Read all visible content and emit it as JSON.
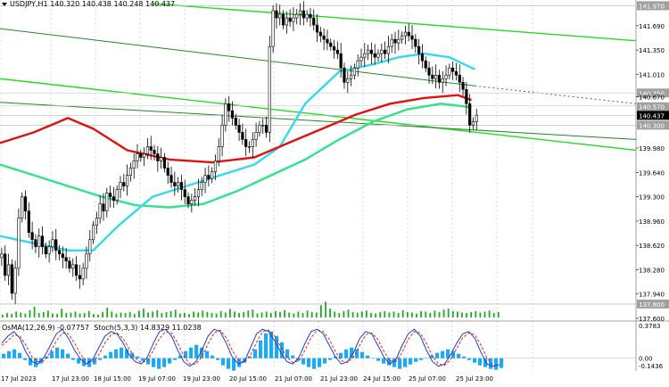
{
  "header": {
    "symbol_label": "USDJPY,H1",
    "ohlc": "140.320 140.438 140.248 140.437"
  },
  "indicator": {
    "osma_label": "OsMA(12,26,9) -0.07757",
    "stoch_label": "Stoch(5,3,3) 14.8329 11.0238"
  },
  "chart_data": {
    "type": "candlestick",
    "instrument": "USDJPY",
    "timeframe": "H1",
    "price_range": [
      137.6,
      142.0
    ],
    "price_ticks": [
      "141.970",
      "141.690",
      "141.350",
      "141.010",
      "140.750",
      "140.670",
      "140.570",
      "140.437",
      "140.300",
      "139.980",
      "139.640",
      "139.300",
      "138.960",
      "138.620",
      "138.280",
      "137.940",
      "137.800",
      "137.600"
    ],
    "time_labels": [
      "17 Jul 2023",
      "17 Jul 23:00",
      "18 Jul 15:00",
      "19 Jul 07:00",
      "19 Jul 23:00",
      "20 Jul 15:00",
      "21 Jul 07:00",
      "21 Jul 23:00",
      "24 Jul 15:00",
      "25 Jul 07:00",
      "25 Jul 23:00"
    ],
    "key_levels": [
      {
        "label": "141.970",
        "price": 141.97,
        "color": "#c0c0c0"
      },
      {
        "label": "140.750",
        "price": 140.75,
        "color": "#d0d0d0"
      },
      {
        "label": "140.570",
        "price": 140.57,
        "color": "#d0d0d0"
      },
      {
        "label": "140.300",
        "price": 140.3,
        "color": "#c0c0c0"
      },
      {
        "label": "137.800",
        "price": 137.8,
        "color": "#c0c0c0"
      }
    ],
    "current_price": {
      "label": "140.437",
      "price": 140.437
    },
    "level_140670": {
      "label": "140.670",
      "price": 140.67
    },
    "close_path": [
      [
        0,
        138.45
      ],
      [
        4,
        138.5
      ],
      [
        8,
        138.2
      ],
      [
        12,
        138.35
      ],
      [
        16,
        137.95
      ],
      [
        20,
        138.3
      ],
      [
        24,
        139.0
      ],
      [
        28,
        139.3
      ],
      [
        32,
        139.1
      ],
      [
        36,
        138.8
      ],
      [
        40,
        138.7
      ],
      [
        44,
        138.6
      ],
      [
        48,
        138.75
      ],
      [
        52,
        138.6
      ],
      [
        56,
        138.5
      ],
      [
        60,
        138.6
      ],
      [
        64,
        138.7
      ],
      [
        68,
        138.55
      ],
      [
        72,
        138.5
      ],
      [
        76,
        138.45
      ],
      [
        80,
        138.4
      ],
      [
        84,
        138.3
      ],
      [
        88,
        138.35
      ],
      [
        92,
        138.2
      ],
      [
        96,
        138.15
      ],
      [
        100,
        138.3
      ],
      [
        104,
        138.5
      ],
      [
        108,
        138.7
      ],
      [
        112,
        138.9
      ],
      [
        116,
        139.0
      ],
      [
        120,
        139.2
      ],
      [
        124,
        139.1
      ],
      [
        128,
        139.35
      ],
      [
        132,
        139.3
      ],
      [
        136,
        139.25
      ],
      [
        140,
        139.4
      ],
      [
        144,
        139.5
      ],
      [
        148,
        139.45
      ],
      [
        152,
        139.6
      ],
      [
        156,
        139.7
      ],
      [
        160,
        139.8
      ],
      [
        164,
        139.9
      ],
      [
        168,
        139.85
      ],
      [
        172,
        139.9
      ],
      [
        176,
        140.0
      ],
      [
        180,
        139.95
      ],
      [
        184,
        139.9
      ],
      [
        188,
        139.8
      ],
      [
        192,
        139.85
      ],
      [
        196,
        139.7
      ],
      [
        200,
        139.6
      ],
      [
        204,
        139.5
      ],
      [
        208,
        139.45
      ],
      [
        212,
        139.5
      ],
      [
        216,
        139.4
      ],
      [
        220,
        139.3
      ],
      [
        224,
        139.2
      ],
      [
        228,
        139.25
      ],
      [
        232,
        139.3
      ],
      [
        236,
        139.4
      ],
      [
        240,
        139.5
      ],
      [
        244,
        139.6
      ],
      [
        248,
        139.55
      ],
      [
        252,
        139.65
      ],
      [
        256,
        139.8
      ],
      [
        260,
        140.0
      ],
      [
        264,
        140.3
      ],
      [
        268,
        140.6
      ],
      [
        272,
        140.5
      ],
      [
        276,
        140.4
      ],
      [
        280,
        140.3
      ],
      [
        284,
        140.2
      ],
      [
        288,
        140.1
      ],
      [
        292,
        140.0
      ],
      [
        296,
        140.0
      ],
      [
        300,
        140.1
      ],
      [
        304,
        140.2
      ],
      [
        308,
        140.3
      ],
      [
        312,
        140.3
      ],
      [
        316,
        140.2
      ],
      [
        320,
        141.4
      ],
      [
        324,
        141.9
      ],
      [
        328,
        141.8
      ],
      [
        332,
        141.85
      ],
      [
        336,
        141.7
      ],
      [
        340,
        141.8
      ],
      [
        344,
        141.75
      ],
      [
        348,
        141.8
      ],
      [
        352,
        141.85
      ],
      [
        356,
        141.9
      ],
      [
        360,
        141.8
      ],
      [
        364,
        141.85
      ],
      [
        368,
        141.8
      ],
      [
        372,
        141.7
      ],
      [
        376,
        141.6
      ],
      [
        380,
        141.55
      ],
      [
        384,
        141.5
      ],
      [
        388,
        141.45
      ],
      [
        392,
        141.4
      ],
      [
        396,
        141.35
      ],
      [
        400,
        141.3
      ],
      [
        404,
        141.1
      ],
      [
        408,
        140.9
      ],
      [
        412,
        140.95
      ],
      [
        416,
        141.0
      ],
      [
        420,
        141.1
      ],
      [
        424,
        141.2
      ],
      [
        428,
        141.25
      ],
      [
        432,
        141.3
      ],
      [
        436,
        141.35
      ],
      [
        440,
        141.3
      ],
      [
        444,
        141.25
      ],
      [
        448,
        141.3
      ],
      [
        452,
        141.35
      ],
      [
        456,
        141.3
      ],
      [
        460,
        141.4
      ],
      [
        464,
        141.5
      ],
      [
        468,
        141.45
      ],
      [
        472,
        141.5
      ],
      [
        476,
        141.55
      ],
      [
        480,
        141.6
      ],
      [
        484,
        141.55
      ],
      [
        488,
        141.5
      ],
      [
        492,
        141.4
      ],
      [
        496,
        141.3
      ],
      [
        500,
        141.2
      ],
      [
        504,
        141.1
      ],
      [
        508,
        141.0
      ],
      [
        512,
        140.95
      ],
      [
        516,
        141.0
      ],
      [
        520,
        140.9
      ],
      [
        524,
        140.95
      ],
      [
        528,
        141.0
      ],
      [
        532,
        141.1
      ],
      [
        536,
        141.05
      ],
      [
        540,
        141.0
      ],
      [
        544,
        140.9
      ],
      [
        548,
        140.8
      ],
      [
        552,
        140.6
      ],
      [
        556,
        140.3
      ],
      [
        560,
        140.35
      ],
      [
        564,
        140.44
      ]
    ],
    "ma_200_red": [
      [
        0,
        140.05
      ],
      [
        40,
        140.2
      ],
      [
        80,
        140.4
      ],
      [
        110,
        140.25
      ],
      [
        150,
        139.95
      ],
      [
        200,
        139.82
      ],
      [
        250,
        139.78
      ],
      [
        300,
        139.85
      ],
      [
        340,
        140.05
      ],
      [
        380,
        140.25
      ],
      [
        420,
        140.45
      ],
      [
        460,
        140.6
      ],
      [
        500,
        140.68
      ],
      [
        540,
        140.72
      ],
      [
        556,
        140.65
      ]
    ],
    "ma_green": [
      [
        0,
        139.75
      ],
      [
        40,
        139.6
      ],
      [
        80,
        139.45
      ],
      [
        120,
        139.3
      ],
      [
        160,
        139.18
      ],
      [
        200,
        139.15
      ],
      [
        240,
        139.2
      ],
      [
        280,
        139.38
      ],
      [
        320,
        139.6
      ],
      [
        360,
        139.82
      ],
      [
        400,
        140.1
      ],
      [
        440,
        140.35
      ],
      [
        480,
        140.52
      ],
      [
        520,
        140.6
      ],
      [
        556,
        140.55
      ]
    ],
    "ma_cyan": [
      [
        0,
        138.75
      ],
      [
        40,
        138.65
      ],
      [
        80,
        138.55
      ],
      [
        110,
        138.55
      ],
      [
        140,
        138.9
      ],
      [
        180,
        139.3
      ],
      [
        220,
        139.45
      ],
      [
        260,
        139.6
      ],
      [
        300,
        139.75
      ],
      [
        330,
        140.0
      ],
      [
        360,
        140.6
      ],
      [
        400,
        141.05
      ],
      [
        440,
        141.15
      ],
      [
        470,
        141.25
      ],
      [
        500,
        141.3
      ],
      [
        530,
        141.25
      ],
      [
        560,
        141.08
      ]
    ],
    "channel_lines": [
      {
        "from": [
          180,
          142.0
        ],
        "to": [
          750,
          141.48
        ],
        "color": "#22dd22"
      },
      {
        "from": [
          0,
          140.95
        ],
        "to": [
          750,
          139.95
        ],
        "color": "#22dd22"
      },
      {
        "from": [
          0,
          141.65
        ],
        "to": [
          560,
          140.85
        ],
        "color": "#228822"
      },
      {
        "from": [
          560,
          140.85
        ],
        "to": [
          750,
          140.6
        ],
        "color": "#228822",
        "dashed": true
      },
      {
        "from": [
          0,
          140.62
        ],
        "to": [
          750,
          140.1
        ],
        "color": "#228822"
      }
    ],
    "volume": [
      6,
      9,
      7,
      12,
      10,
      8,
      15,
      22,
      9,
      11,
      14,
      8,
      7,
      18,
      9,
      10,
      12,
      8,
      9,
      13,
      7,
      6,
      11,
      20,
      12,
      8,
      10,
      9,
      11,
      7,
      14,
      18,
      10,
      12,
      15,
      9,
      11,
      13,
      16,
      8,
      9,
      7,
      12,
      10,
      14,
      11,
      9,
      8,
      13,
      10,
      17,
      12,
      9,
      11,
      14,
      16,
      8,
      10,
      12,
      9,
      13,
      11,
      15,
      10,
      8,
      12,
      9,
      14,
      11,
      10,
      25,
      32,
      18,
      12,
      9,
      13,
      16,
      11,
      10,
      12,
      14,
      9,
      8,
      11,
      13,
      10,
      12,
      9,
      15,
      11,
      10,
      8,
      13,
      12,
      9,
      14,
      11,
      16,
      18,
      13,
      12,
      10,
      9,
      11,
      13,
      10,
      12,
      14,
      9,
      11
    ],
    "osma": [
      0.05,
      0.08,
      0.1,
      0.06,
      -0.02,
      -0.08,
      -0.1,
      -0.06,
      0.02,
      0.08,
      0.12,
      0.1,
      0.05,
      -0.02,
      -0.06,
      -0.09,
      -0.1,
      -0.07,
      -0.02,
      0.03,
      0.07,
      0.1,
      0.12,
      0.1,
      0.06,
      0.02,
      -0.03,
      -0.07,
      -0.1,
      -0.12,
      -0.1,
      -0.06,
      -0.02,
      0.03,
      0.08,
      0.12,
      0.15,
      0.12,
      0.08,
      0.03,
      -0.02,
      -0.08,
      -0.12,
      -0.14,
      -0.1,
      -0.05,
      0.02,
      0.1,
      0.2,
      0.28,
      0.3,
      0.25,
      0.18,
      0.1,
      0.03,
      -0.03,
      -0.07,
      -0.1,
      -0.12,
      -0.1,
      -0.06,
      -0.02,
      0.02,
      0.06,
      0.1,
      0.12,
      0.1,
      0.07,
      0.03,
      0.0,
      -0.03,
      -0.06,
      -0.08,
      -0.1,
      -0.12,
      -0.1,
      -0.07,
      -0.04,
      -0.02,
      0.0,
      0.03,
      0.06,
      0.08,
      0.1,
      0.08,
      0.05,
      0.02,
      -0.02,
      -0.05,
      -0.08,
      -0.1,
      -0.12,
      -0.13,
      -0.11,
      -0.08
    ],
    "stoch_main": [
      60,
      75,
      85,
      70,
      40,
      20,
      15,
      30,
      55,
      80,
      90,
      70,
      45,
      25,
      15,
      25,
      50,
      75,
      85,
      80,
      60,
      35,
      20,
      15,
      30,
      60,
      85,
      90,
      75,
      45,
      20,
      10,
      20,
      45,
      75,
      90,
      85,
      60,
      30,
      15,
      20,
      50,
      80,
      90,
      85,
      65,
      40,
      20,
      15,
      30,
      60,
      85,
      90,
      80,
      55,
      30,
      15,
      20,
      40,
      70,
      85,
      80,
      55,
      30,
      15,
      25,
      55,
      80,
      90,
      75,
      45,
      20,
      10,
      15,
      35,
      60,
      80,
      85,
      70,
      40,
      15,
      10,
      14
    ],
    "stoch_signal": [
      55,
      65,
      78,
      75,
      55,
      30,
      20,
      22,
      40,
      65,
      82,
      80,
      60,
      35,
      20,
      20,
      35,
      60,
      78,
      82,
      70,
      48,
      28,
      18,
      22,
      45,
      70,
      85,
      82,
      60,
      32,
      15,
      15,
      30,
      58,
      82,
      88,
      72,
      45,
      22,
      18,
      35,
      62,
      85,
      88,
      75,
      52,
      30,
      18,
      22,
      45,
      72,
      88,
      85,
      68,
      42,
      22,
      18,
      30,
      55,
      78,
      82,
      68,
      42,
      22,
      20,
      40,
      68,
      85,
      82,
      60,
      32,
      15,
      12,
      25,
      48,
      72,
      82,
      78,
      55,
      28,
      12,
      11
    ]
  }
}
